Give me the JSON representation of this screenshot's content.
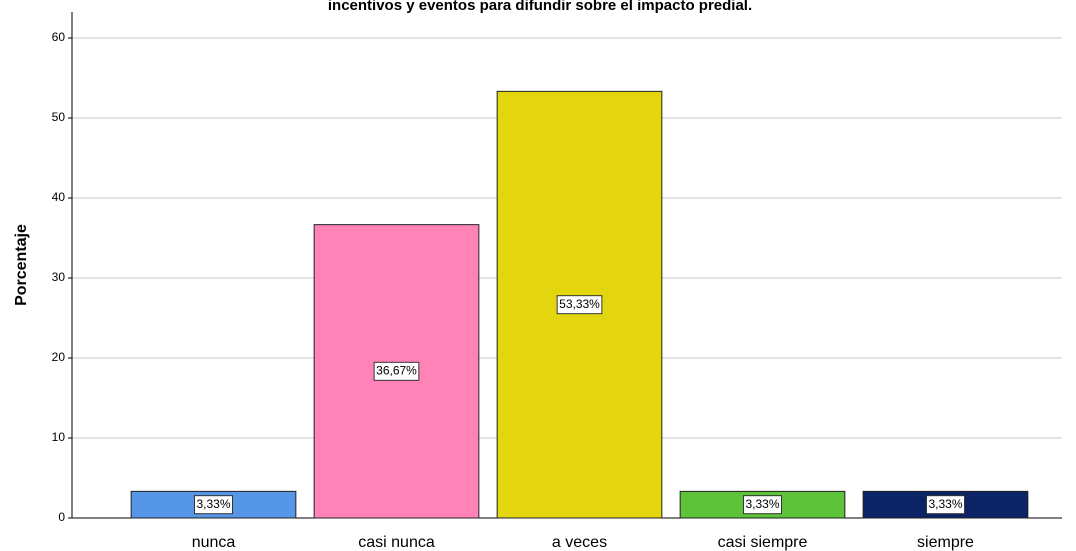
{
  "chart_data": {
    "type": "bar",
    "title": "incentivos y eventos para difundir sobre el impacto predial.",
    "y_label": "Porcentaje",
    "categories": [
      "nunca",
      "casi nunca",
      "a veces",
      "casi siempre",
      "siempre"
    ],
    "values": [
      3.33,
      36.67,
      53.33,
      3.33,
      3.33
    ],
    "value_labels": [
      "3,33%",
      "36,67%",
      "53,33%",
      "3,33%",
      "3,33%"
    ],
    "colors": [
      "#5596e6",
      "#ff83b6",
      "#e3d60e",
      "#5dc43a",
      "#0a2466"
    ],
    "ylim": [
      0,
      63
    ],
    "yticks": [
      0,
      10,
      20,
      30,
      40,
      50,
      60
    ],
    "grid": true
  }
}
